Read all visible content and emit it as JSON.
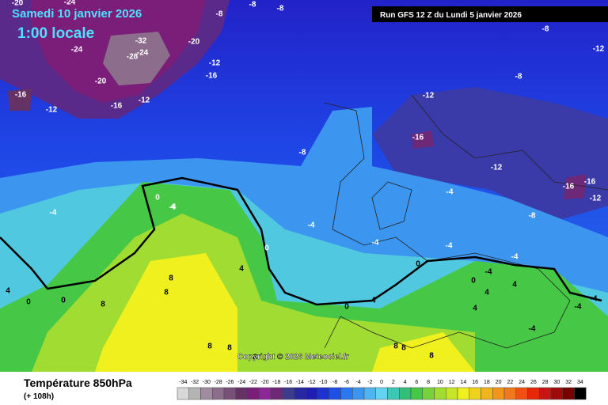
{
  "header": {
    "date": "Samedi 10 janvier 2026",
    "time": "1:00 locale",
    "run": "Run GFS 12 Z du Lundi 5 janvier 2026"
  },
  "copyright": "Copyright © 2026 Meteociel.fr",
  "footer": {
    "title": "Température 850hPa",
    "lead": "(+ 108h)"
  },
  "legend": {
    "labels": [
      -34,
      -32,
      -30,
      -28,
      -26,
      -24,
      -22,
      -20,
      -18,
      -16,
      -14,
      -12,
      -10,
      -8,
      -6,
      -4,
      -2,
      0,
      2,
      4,
      6,
      8,
      10,
      12,
      14,
      16,
      18,
      20,
      22,
      24,
      26,
      28,
      30,
      32,
      34
    ],
    "colors": [
      "#d8d8d8",
      "#b4b4b4",
      "#a08ca0",
      "#8c6e8c",
      "#785078",
      "#643264",
      "#7a1e7a",
      "#8c2896",
      "#6e2878",
      "#3c3c8c",
      "#2828a0",
      "#1e1eb4",
      "#1e32d2",
      "#1e50e6",
      "#2878f0",
      "#3c96f0",
      "#50b4f0",
      "#64d2f0",
      "#3cc8b4",
      "#32be78",
      "#46c846",
      "#78d23c",
      "#a0dc32",
      "#c8e628",
      "#f0f01e",
      "#f0d21e",
      "#f0b41e",
      "#f0961e",
      "#f0781e",
      "#f05014",
      "#e6280a",
      "#c81414",
      "#a00a0a",
      "#780000",
      "#000000"
    ]
  },
  "map": {
    "labels": [
      "-20",
      "-24",
      "-8",
      "-8",
      "-8",
      "-32",
      "-20",
      "-24",
      "-24",
      "-28",
      "-12",
      "-16",
      "-20",
      "-12",
      "-16",
      "-16",
      "-12",
      "-8",
      "-12",
      "-8",
      "-12",
      "-16",
      "-8",
      "-12",
      "-16",
      "-16",
      "-12",
      "-4",
      "-8",
      "-4",
      "-4",
      "0",
      "4",
      "-4",
      "-4",
      "-4",
      "-4",
      "0",
      "4",
      "0",
      "0",
      "-4",
      "-4",
      "0",
      "4",
      "8",
      "8",
      "8",
      "0",
      "0",
      "8",
      "4",
      "8",
      "8",
      "8",
      "8",
      "8",
      "-4",
      "4",
      "4",
      "-4",
      "-4"
    ]
  }
}
